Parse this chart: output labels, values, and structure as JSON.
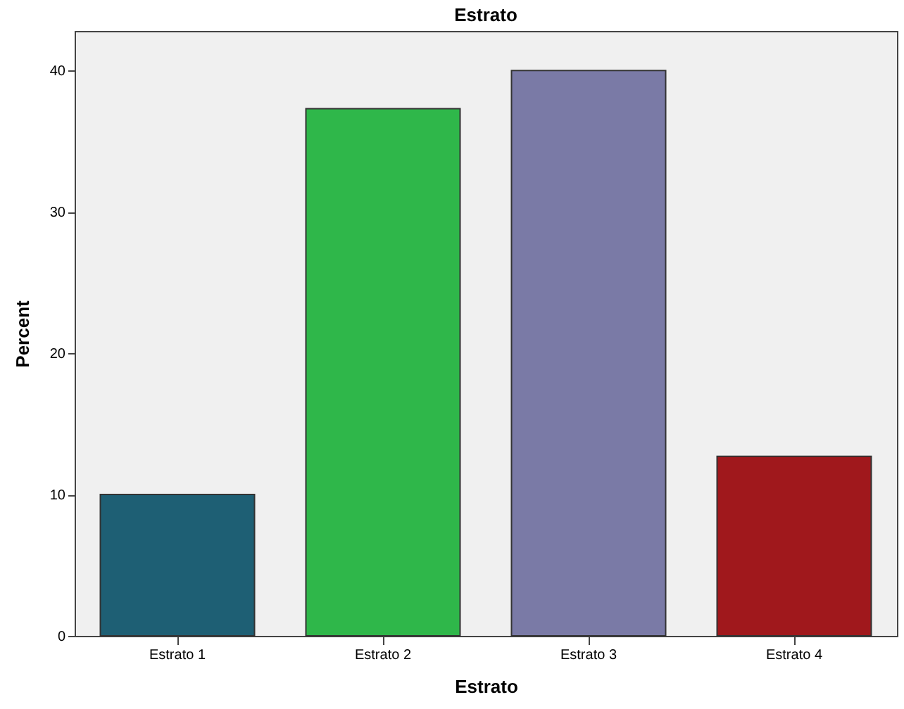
{
  "chart_data": {
    "type": "bar",
    "title": "Estrato",
    "xlabel": "Estrato",
    "ylabel": "Percent",
    "categories": [
      "Estrato 1",
      "Estrato 2",
      "Estrato 3",
      "Estrato 4"
    ],
    "values": [
      10.0,
      37.3,
      40.0,
      12.7
    ],
    "colors": [
      "#1e5f74",
      "#2fb74a",
      "#7a7aa6",
      "#a0181c"
    ],
    "ylim": [
      0,
      42.8
    ],
    "yticks": [
      0,
      10,
      20,
      30,
      40
    ]
  }
}
